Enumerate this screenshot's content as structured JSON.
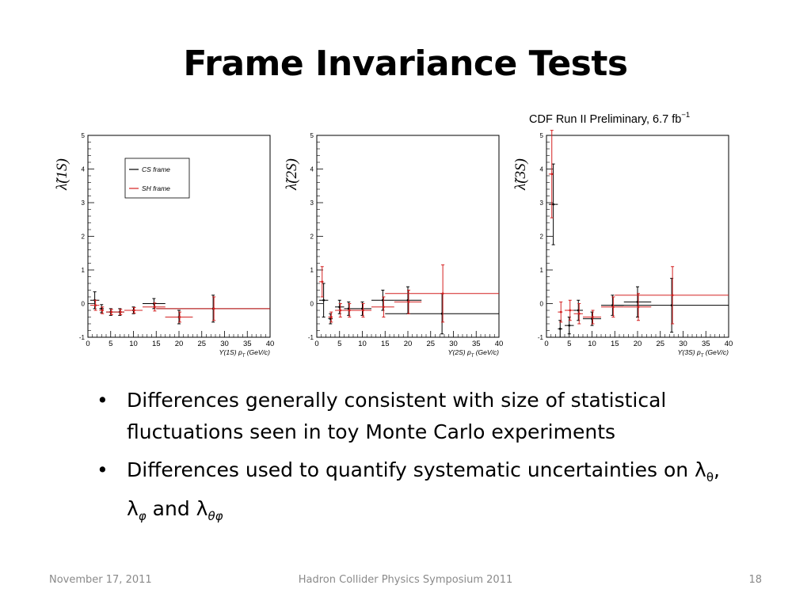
{
  "slide": {
    "title": "Frame Invariance Tests",
    "preliminary_label": "CDF Run II Preliminary, 6.7 fb",
    "preliminary_exponent": "−1",
    "bullets": [
      {
        "prefix": "Differences generally consistent with size of statistical fluctuations seen in toy Monte Carlo experiments"
      },
      {
        "prefix": "Differences used to quantify systematic uncertainties on λ",
        "sub1": "θ",
        "mid1": ", λ",
        "sub2": "φ",
        "mid2": " and λ",
        "sub3": "θφ"
      }
    ],
    "footer": {
      "date": "November 17, 2011",
      "event": "Hadron Collider Physics Symposium  2011",
      "page": "18"
    }
  },
  "chart_data": [
    {
      "type": "scatter",
      "ylabel": "λ̃(1S)",
      "xlabel": "ϒ(1S)  p",
      "xlabel_sub": "T",
      "xlabel_unit": "(GeV/c)",
      "xlim": [
        0,
        40
      ],
      "ylim": [
        -1,
        5
      ],
      "xticks": [
        0,
        5,
        10,
        15,
        20,
        25,
        30,
        35,
        40
      ],
      "yticks": [
        -1,
        0,
        1,
        2,
        3,
        4,
        5
      ],
      "legend": {
        "entries": [
          {
            "name": "CS frame",
            "color": "#000000"
          },
          {
            "name": "SH frame",
            "color": "#d42020"
          }
        ]
      },
      "series": [
        {
          "name": "CS frame",
          "color": "#000000",
          "points": [
            {
              "x": 1.5,
              "xerr": 1.0,
              "y": 0.1,
              "yerr": 0.25
            },
            {
              "x": 3.0,
              "xerr": 0.5,
              "y": -0.15,
              "yerr": 0.12
            },
            {
              "x": 5.0,
              "xerr": 1.0,
              "y": -0.25,
              "yerr": 0.1
            },
            {
              "x": 7.0,
              "xerr": 1.0,
              "y": -0.25,
              "yerr": 0.1
            },
            {
              "x": 10.0,
              "xerr": 2.0,
              "y": -0.2,
              "yerr": 0.1
            },
            {
              "x": 14.5,
              "xerr": 2.5,
              "y": 0.0,
              "yerr": 0.15
            },
            {
              "x": 20.0,
              "xerr": 3.0,
              "y": -0.4,
              "yerr": 0.2
            },
            {
              "x": 27.5,
              "xerr": 12.5,
              "y": -0.15,
              "yerr": 0.4
            }
          ]
        },
        {
          "name": "SH frame",
          "color": "#d42020",
          "points": [
            {
              "x": 1.5,
              "xerr": 1.0,
              "y": -0.05,
              "yerr": 0.15
            },
            {
              "x": 3.0,
              "xerr": 0.5,
              "y": -0.2,
              "yerr": 0.1
            },
            {
              "x": 5.0,
              "xerr": 1.0,
              "y": -0.25,
              "yerr": 0.08
            },
            {
              "x": 7.0,
              "xerr": 1.0,
              "y": -0.25,
              "yerr": 0.08
            },
            {
              "x": 10.0,
              "xerr": 2.0,
              "y": -0.2,
              "yerr": 0.08
            },
            {
              "x": 14.5,
              "xerr": 2.5,
              "y": -0.1,
              "yerr": 0.12
            },
            {
              "x": 20.0,
              "xerr": 3.0,
              "y": -0.4,
              "yerr": 0.15
            },
            {
              "x": 27.5,
              "xerr": 12.5,
              "y": -0.15,
              "yerr": 0.35
            }
          ]
        }
      ]
    },
    {
      "type": "scatter",
      "ylabel": "λ̃(2S)",
      "xlabel": "ϒ(2S)  p",
      "xlabel_sub": "T",
      "xlabel_unit": "(GeV/c)",
      "xlim": [
        0,
        40
      ],
      "ylim": [
        -1,
        5
      ],
      "xticks": [
        0,
        5,
        10,
        15,
        20,
        25,
        30,
        35,
        40
      ],
      "yticks": [
        -1,
        0,
        1,
        2,
        3,
        4,
        5
      ],
      "series": [
        {
          "name": "CS frame",
          "color": "#000000",
          "points": [
            {
              "x": 1.5,
              "xerr": 1.0,
              "y": 0.1,
              "yerr": 0.5
            },
            {
              "x": 3.0,
              "xerr": 0.5,
              "y": -0.45,
              "yerr": 0.15
            },
            {
              "x": 5.0,
              "xerr": 1.0,
              "y": -0.1,
              "yerr": 0.2
            },
            {
              "x": 7.0,
              "xerr": 1.0,
              "y": -0.15,
              "yerr": 0.2
            },
            {
              "x": 10.0,
              "xerr": 2.0,
              "y": -0.15,
              "yerr": 0.2
            },
            {
              "x": 14.5,
              "xerr": 2.5,
              "y": 0.1,
              "yerr": 0.3
            },
            {
              "x": 20.0,
              "xerr": 3.0,
              "y": 0.1,
              "yerr": 0.4
            },
            {
              "x": 27.5,
              "xerr": 12.5,
              "y": -0.3,
              "yerr": 0.6
            }
          ]
        },
        {
          "name": "SH frame",
          "color": "#d42020",
          "points": [
            {
              "x": 1.0,
              "xerr": 0.5,
              "y": 0.65,
              "yerr": 0.45
            },
            {
              "x": 3.0,
              "xerr": 0.5,
              "y": -0.4,
              "yerr": 0.15
            },
            {
              "x": 5.0,
              "xerr": 1.0,
              "y": -0.2,
              "yerr": 0.2
            },
            {
              "x": 7.0,
              "xerr": 1.0,
              "y": -0.2,
              "yerr": 0.2
            },
            {
              "x": 10.0,
              "xerr": 2.0,
              "y": -0.2,
              "yerr": 0.2
            },
            {
              "x": 14.5,
              "xerr": 2.5,
              "y": -0.1,
              "yerr": 0.3
            },
            {
              "x": 20.0,
              "xerr": 3.0,
              "y": 0.05,
              "yerr": 0.35
            },
            {
              "x": 27.5,
              "xerr": 12.5,
              "y": 0.3,
              "yerr": 0.85
            }
          ]
        }
      ]
    },
    {
      "type": "scatter",
      "ylabel": "λ̃(3S)",
      "xlabel": "ϒ(3S)  p",
      "xlabel_sub": "T",
      "xlabel_unit": "(GeV/c)",
      "xlim": [
        0,
        40
      ],
      "ylim": [
        -1,
        5
      ],
      "xticks": [
        0,
        5,
        10,
        15,
        20,
        25,
        30,
        35,
        40
      ],
      "yticks": [
        -1,
        0,
        1,
        2,
        3,
        4,
        5
      ],
      "series": [
        {
          "name": "CS frame",
          "color": "#000000",
          "points": [
            {
              "x": 1.5,
              "xerr": 1.0,
              "y": 2.95,
              "yerr": 1.2
            },
            {
              "x": 3.0,
              "xerr": 0.5,
              "y": -0.75,
              "yerr": 0.25
            },
            {
              "x": 5.0,
              "xerr": 1.0,
              "y": -0.65,
              "yerr": 0.25
            },
            {
              "x": 7.0,
              "xerr": 1.0,
              "y": -0.2,
              "yerr": 0.3
            },
            {
              "x": 10.0,
              "xerr": 2.0,
              "y": -0.45,
              "yerr": 0.2
            },
            {
              "x": 14.5,
              "xerr": 2.5,
              "y": -0.05,
              "yerr": 0.3
            },
            {
              "x": 20.0,
              "xerr": 3.0,
              "y": 0.05,
              "yerr": 0.45
            },
            {
              "x": 27.5,
              "xerr": 12.5,
              "y": -0.05,
              "yerr": 0.8
            }
          ]
        },
        {
          "name": "SH frame",
          "color": "#d42020",
          "points": [
            {
              "x": 1.0,
              "xerr": 0.5,
              "y": 3.85,
              "yerr": 1.3
            },
            {
              "x": 3.0,
              "xerr": 0.5,
              "y": -0.25,
              "yerr": 0.3
            },
            {
              "x": 5.0,
              "xerr": 1.0,
              "y": -0.2,
              "yerr": 0.3
            },
            {
              "x": 7.0,
              "xerr": 1.0,
              "y": -0.3,
              "yerr": 0.3
            },
            {
              "x": 10.0,
              "xerr": 2.0,
              "y": -0.4,
              "yerr": 0.2
            },
            {
              "x": 14.5,
              "xerr": 2.5,
              "y": -0.1,
              "yerr": 0.3
            },
            {
              "x": 20.0,
              "xerr": 3.0,
              "y": -0.1,
              "yerr": 0.4
            },
            {
              "x": 27.5,
              "xerr": 12.5,
              "y": 0.25,
              "yerr": 0.85
            }
          ]
        }
      ]
    }
  ]
}
